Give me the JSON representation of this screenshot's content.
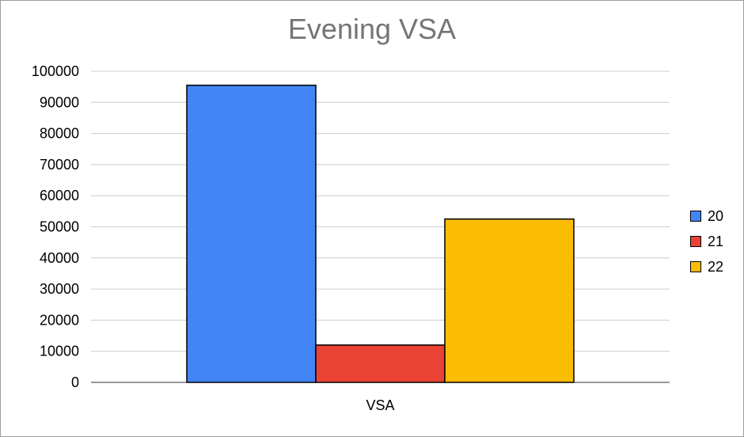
{
  "chart_data": {
    "type": "bar",
    "title": "Evening VSA",
    "categories": [
      "VSA"
    ],
    "series": [
      {
        "name": "20",
        "values": [
          95500
        ],
        "color": "#4285f4"
      },
      {
        "name": "21",
        "values": [
          12000
        ],
        "color": "#ea4335"
      },
      {
        "name": "22",
        "values": [
          52500
        ],
        "color": "#fbbc04"
      }
    ],
    "ylim": [
      0,
      100000
    ],
    "yticks": [
      0,
      10000,
      20000,
      30000,
      40000,
      50000,
      60000,
      70000,
      80000,
      90000,
      100000
    ],
    "legend_position": "right",
    "grid": true
  }
}
